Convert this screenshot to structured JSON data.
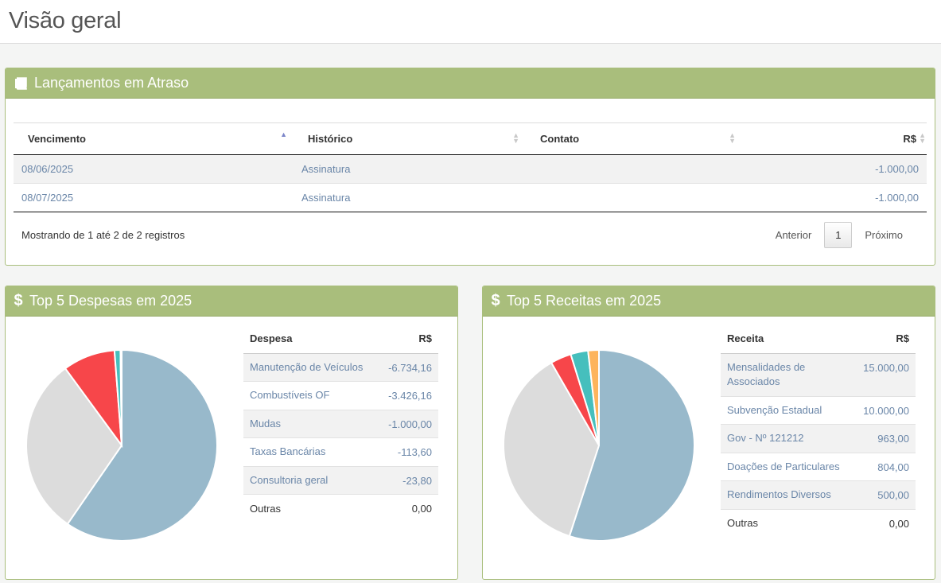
{
  "page": {
    "title": "Visão geral"
  },
  "overdue": {
    "title": "Lançamentos em Atraso",
    "icon": "book-icon",
    "columns": [
      "Vencimento",
      "Histórico",
      "Contato",
      "R$"
    ],
    "rows": [
      {
        "vencimento": "08/06/2025",
        "historico": "Assinatura",
        "contato": "",
        "valor": "-1.000,00"
      },
      {
        "vencimento": "08/07/2025",
        "historico": "Assinatura",
        "contato": "",
        "valor": "-1.000,00"
      }
    ],
    "info": "Mostrando de 1 até 2 de 2 registros",
    "pagination": {
      "prev": "Anterior",
      "current": "1",
      "next": "Próximo"
    }
  },
  "expenses": {
    "title": "Top 5 Despesas em 2025",
    "icon": "dollar-icon",
    "col_name": "Despesa",
    "col_value": "R$",
    "rows": [
      {
        "name": "Manutenção de Veículos",
        "value": "-6.734,16"
      },
      {
        "name": "Combustíveis OF",
        "value": "-3.426,16"
      },
      {
        "name": "Mudas",
        "value": "-1.000,00"
      },
      {
        "name": "Taxas Bancárias",
        "value": "-113,60"
      },
      {
        "name": "Consultoria geral",
        "value": "-23,80"
      },
      {
        "name": "Outras",
        "value": "0,00"
      }
    ]
  },
  "revenues": {
    "title": "Top 5 Receitas em 2025",
    "icon": "dollar-icon",
    "col_name": "Receita",
    "col_value": "R$",
    "rows": [
      {
        "name": "Mensalidades de Associados",
        "value": "15.000,00"
      },
      {
        "name": "Subvenção Estadual",
        "value": "10.000,00"
      },
      {
        "name": "Gov - Nº 121212",
        "value": "963,00"
      },
      {
        "name": "Doações de Particulares",
        "value": "804,00"
      },
      {
        "name": "Rendimentos Diversos",
        "value": "500,00"
      },
      {
        "name": "Outras",
        "value": "0,00"
      }
    ]
  },
  "chart_data": [
    {
      "type": "pie",
      "labels": [
        "Manutenção de Veículos",
        "Combustíveis OF",
        "Mudas",
        "Taxas Bancárias",
        "Consultoria geral",
        "Outras"
      ],
      "values": [
        6734.16,
        3426.16,
        1000.0,
        113.6,
        23.8,
        0
      ],
      "colors": [
        "#98b9cb",
        "#dcdcdc",
        "#f7464a",
        "#46bfbd",
        "#fdb45c",
        "#949fb1"
      ]
    },
    {
      "type": "pie",
      "labels": [
        "Mensalidades de Associados",
        "Subvenção Estadual",
        "Gov - Nº 121212",
        "Doações de Particulares",
        "Rendimentos Diversos",
        "Outras"
      ],
      "values": [
        15000.0,
        10000.0,
        963.0,
        804.0,
        500.0,
        0
      ],
      "colors": [
        "#98b9cb",
        "#dcdcdc",
        "#f7464a",
        "#46bfbd",
        "#fdb45c",
        "#949fb1"
      ]
    }
  ]
}
